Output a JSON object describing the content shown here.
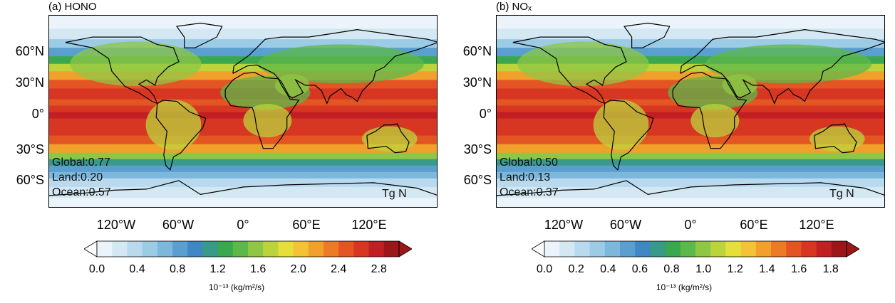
{
  "panels": [
    {
      "title": "(a) HONO",
      "stats": {
        "global": "Global:0.77",
        "land": "Land:0.20",
        "ocean": "Ocean:0.57"
      },
      "units_tag": "Tg N",
      "lat_labels": [
        "60°N",
        "30°N",
        "0°",
        "30°S",
        "60°S"
      ],
      "lon_labels": [
        "120°W",
        "60°W",
        "0°",
        "60°E",
        "120°E"
      ],
      "colorbar": {
        "ticks": [
          "0.0",
          "0.4",
          "0.8",
          "1.2",
          "1.6",
          "2.0",
          "2.4",
          "2.8"
        ],
        "units": "10⁻¹³ (kg/m²/s)",
        "min": 0.0,
        "max": 3.0
      }
    },
    {
      "title": "(b) NOₓ",
      "stats": {
        "global": "Global:0.50",
        "land": "Land:0.13",
        "ocean": "Ocean:0.37"
      },
      "units_tag": "Tg N",
      "lat_labels": [
        "60°N",
        "30°N",
        "0°",
        "30°S",
        "60°S"
      ],
      "lon_labels": [
        "120°W",
        "60°W",
        "0°",
        "60°E",
        "120°E"
      ],
      "colorbar": {
        "ticks": [
          "0.0",
          "0.2",
          "0.4",
          "0.6",
          "0.8",
          "1.0",
          "1.2",
          "1.4",
          "1.6",
          "1.8"
        ],
        "units": "10⁻¹³ (kg/m²/s)",
        "min": 0.0,
        "max": 1.9
      }
    }
  ],
  "colormap": [
    "#ffffff",
    "#eaf4fa",
    "#d4e8f4",
    "#b9daee",
    "#9ccbe6",
    "#7db7dc",
    "#5a9fd0",
    "#3f88c4",
    "#3a9a8a",
    "#3aa84f",
    "#5db84a",
    "#8fc744",
    "#bcd43c",
    "#e6df3a",
    "#f5c235",
    "#f2a02c",
    "#ec7b27",
    "#e35624",
    "#d63622",
    "#c11f21",
    "#9c1719"
  ]
}
